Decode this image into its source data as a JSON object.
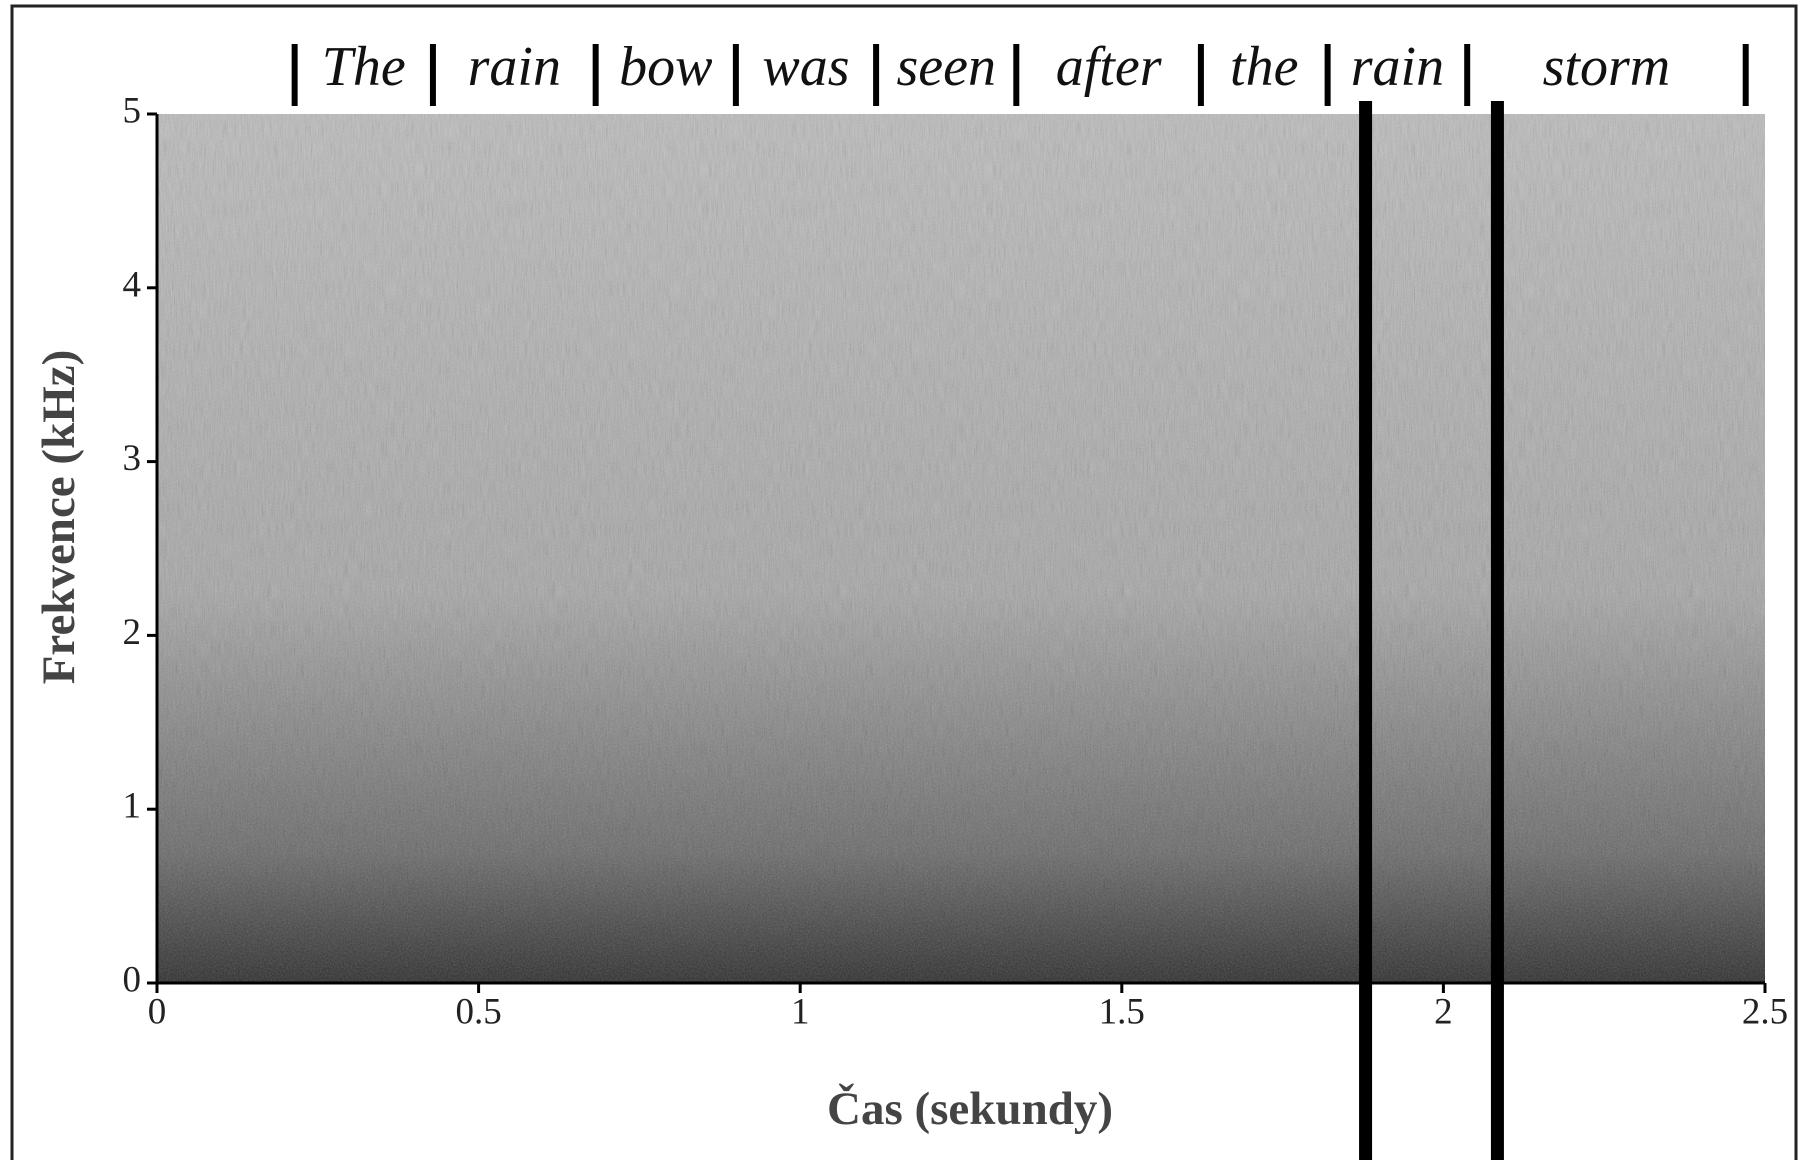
{
  "chart_data": {
    "type": "spectrogram",
    "xlabel": "Čas (sekundy)",
    "ylabel": "Frekvence (kHz)",
    "xlim": [
      0,
      2.5
    ],
    "ylim": [
      0,
      5
    ],
    "xticks": [
      0,
      0.5,
      1,
      1.5,
      2,
      2.5
    ],
    "yticks": [
      0,
      1,
      2,
      3,
      4,
      5
    ],
    "words": [
      "The",
      "rain",
      "bow",
      "was",
      "seen",
      "after",
      "the",
      "rain",
      "storm"
    ],
    "word_boundaries": [
      0.214,
      0.429,
      0.682,
      0.9,
      1.118,
      1.336,
      1.623,
      1.82,
      2.037,
      2.47
    ],
    "cursors": [
      1.879,
      2.084
    ]
  }
}
